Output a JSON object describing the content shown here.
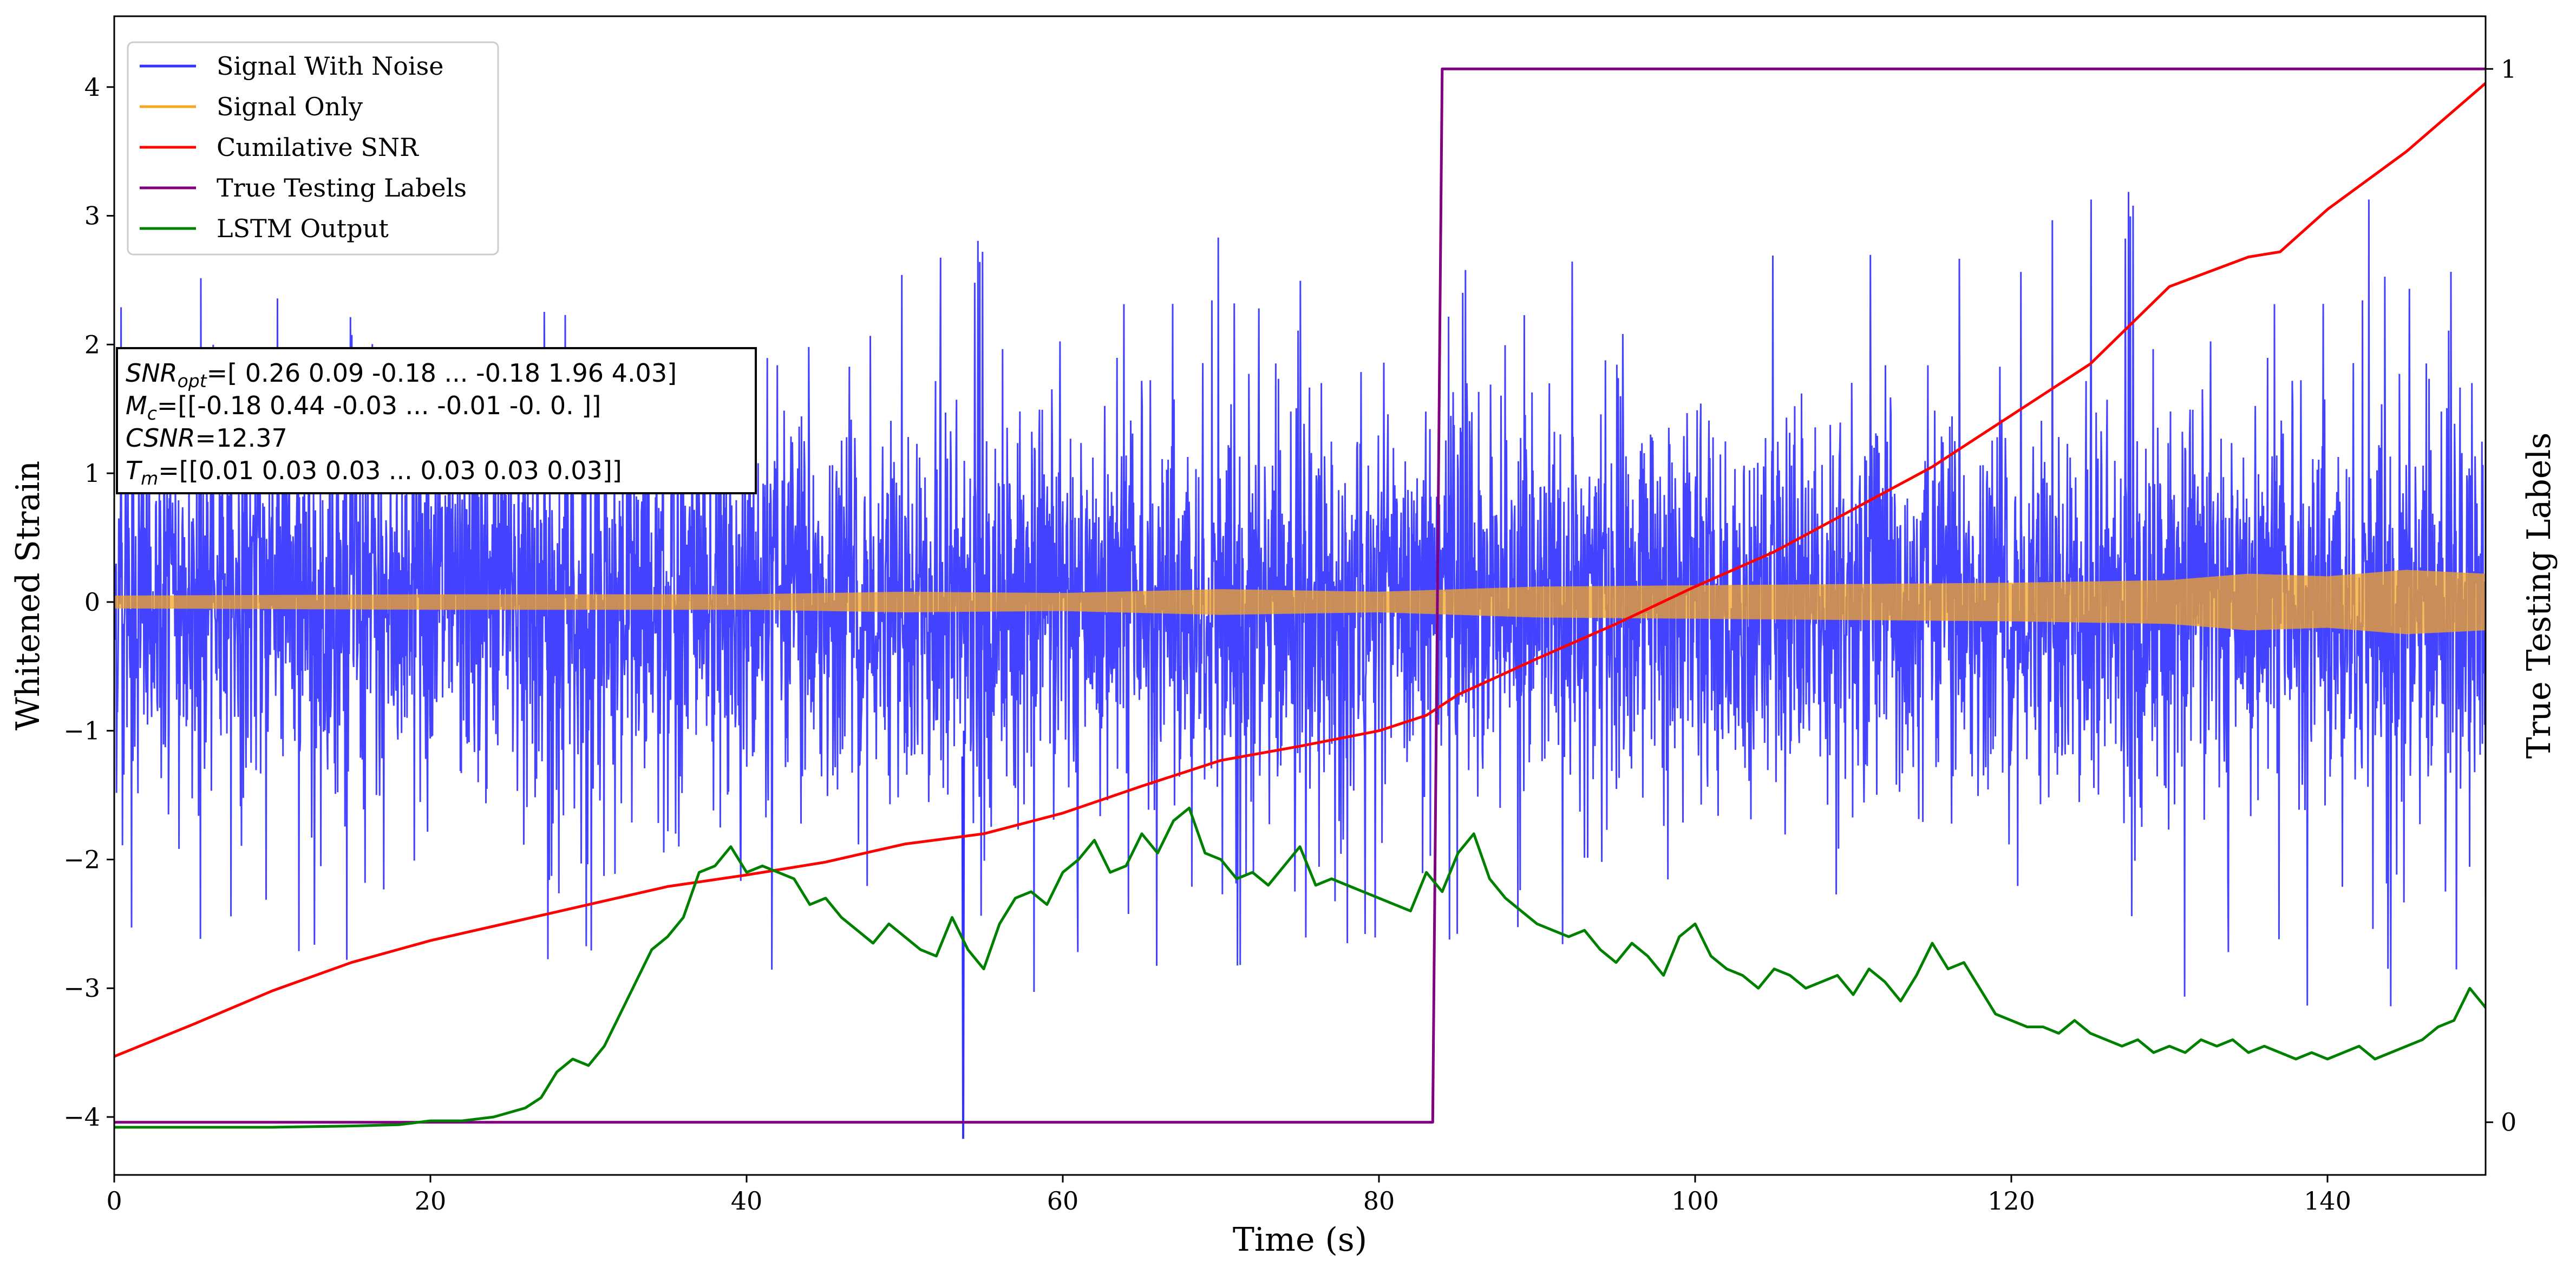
{
  "chart_data": {
    "type": "line",
    "xlabel": "Time (s)",
    "ylabel": "Whitened Strain",
    "y2label": "True Testing Labels",
    "xlim": [
      0,
      150
    ],
    "ylim": [
      -4.45,
      4.55
    ],
    "y2lim": [
      -0.05,
      1.05
    ],
    "x_ticks": [
      0,
      20,
      40,
      60,
      80,
      100,
      120,
      140
    ],
    "y_ticks": [
      -4,
      -3,
      -2,
      -1,
      0,
      1,
      2,
      3,
      4
    ],
    "y2_ticks": [
      0,
      1
    ],
    "legend_placement": "upper-left",
    "series": [
      {
        "name": "Signal With Noise",
        "color": "#3333ff",
        "axis": "left",
        "kind": "noise-band",
        "envelope_x": [
          0,
          20,
          40,
          60,
          80,
          100,
          120,
          140,
          150
        ],
        "envelope_upper": [
          2.8,
          2.4,
          2.0,
          3.1,
          3.0,
          2.9,
          3.0,
          3.5,
          3.0
        ],
        "envelope_lower": [
          -3.0,
          -2.7,
          -2.9,
          -3.1,
          -2.6,
          -2.7,
          -2.9,
          -3.3,
          -2.9
        ],
        "min_spike": {
          "x": 53.7,
          "y": -4.17
        }
      },
      {
        "name": "Signal Only",
        "color": "#f5a623",
        "axis": "left",
        "kind": "oscillation",
        "envelope_x": [
          0,
          20,
          40,
          50,
          60,
          70,
          80,
          90,
          100,
          110,
          120,
          130,
          135,
          140,
          145,
          150
        ],
        "envelope_amp": [
          0.05,
          0.06,
          0.06,
          0.08,
          0.07,
          0.1,
          0.08,
          0.12,
          0.13,
          0.14,
          0.15,
          0.17,
          0.22,
          0.2,
          0.25,
          0.22
        ]
      },
      {
        "name": "Cumilative SNR",
        "color": "#ff0000",
        "axis": "left",
        "x": [
          0,
          5,
          10,
          15,
          20,
          25,
          30,
          35,
          40,
          45,
          50,
          55,
          60,
          65,
          70,
          75,
          80,
          83,
          85,
          90,
          95,
          100,
          105,
          110,
          115,
          120,
          125,
          130,
          135,
          137,
          140,
          145,
          150
        ],
        "values": [
          -3.53,
          -3.28,
          -3.02,
          -2.8,
          -2.63,
          -2.49,
          -2.35,
          -2.21,
          -2.12,
          -2.02,
          -1.88,
          -1.8,
          -1.64,
          -1.43,
          -1.23,
          -1.12,
          -1.0,
          -0.88,
          -0.72,
          -0.44,
          -0.17,
          0.12,
          0.39,
          0.72,
          1.05,
          1.45,
          1.85,
          2.45,
          2.68,
          2.72,
          3.05,
          3.5,
          4.03
        ]
      },
      {
        "name": "True Testing Labels",
        "color": "#800080",
        "axis": "right",
        "x": [
          0,
          83.4,
          84.0,
          150
        ],
        "values": [
          0,
          0,
          1,
          1
        ]
      },
      {
        "name": "LSTM Output",
        "color": "#008000",
        "axis": "left",
        "x": [
          0,
          10,
          15,
          18,
          20,
          22,
          24,
          26,
          27,
          28,
          29,
          30,
          31,
          32,
          33,
          34,
          35,
          36,
          37,
          38,
          39,
          40,
          41,
          42,
          43,
          44,
          45,
          46,
          47,
          48,
          49,
          50,
          51,
          52,
          53,
          54,
          55,
          56,
          57,
          58,
          59,
          60,
          61,
          62,
          63,
          64,
          65,
          66,
          67,
          68,
          69,
          70,
          71,
          72,
          73,
          74,
          75,
          76,
          77,
          78,
          79,
          80,
          81,
          82,
          83,
          84,
          85,
          86,
          87,
          88,
          89,
          90,
          91,
          92,
          93,
          94,
          95,
          96,
          97,
          98,
          99,
          100,
          101,
          102,
          103,
          104,
          105,
          106,
          107,
          108,
          109,
          110,
          111,
          112,
          113,
          114,
          115,
          116,
          117,
          118,
          119,
          120,
          121,
          122,
          123,
          124,
          125,
          126,
          127,
          128,
          129,
          130,
          131,
          132,
          133,
          134,
          135,
          136,
          137,
          138,
          139,
          140,
          141,
          142,
          143,
          144,
          145,
          146,
          147,
          148,
          149,
          150
        ],
        "values": [
          -4.08,
          -4.08,
          -4.07,
          -4.06,
          -4.03,
          -4.03,
          -4.0,
          -3.93,
          -3.85,
          -3.65,
          -3.55,
          -3.6,
          -3.45,
          -3.2,
          -2.95,
          -2.7,
          -2.6,
          -2.45,
          -2.1,
          -2.05,
          -1.9,
          -2.1,
          -2.05,
          -2.1,
          -2.15,
          -2.35,
          -2.3,
          -2.45,
          -2.55,
          -2.65,
          -2.5,
          -2.6,
          -2.7,
          -2.75,
          -2.45,
          -2.7,
          -2.85,
          -2.5,
          -2.3,
          -2.25,
          -2.35,
          -2.1,
          -2.0,
          -1.85,
          -2.1,
          -2.05,
          -1.8,
          -1.95,
          -1.7,
          -1.6,
          -1.95,
          -2.0,
          -2.15,
          -2.1,
          -2.2,
          -2.05,
          -1.9,
          -2.2,
          -2.15,
          -2.2,
          -2.25,
          -2.3,
          -2.35,
          -2.4,
          -2.1,
          -2.25,
          -1.95,
          -1.8,
          -2.15,
          -2.3,
          -2.4,
          -2.5,
          -2.55,
          -2.6,
          -2.55,
          -2.7,
          -2.8,
          -2.65,
          -2.75,
          -2.9,
          -2.6,
          -2.5,
          -2.75,
          -2.85,
          -2.9,
          -3.0,
          -2.85,
          -2.9,
          -3.0,
          -2.95,
          -2.9,
          -3.05,
          -2.85,
          -2.95,
          -3.1,
          -2.9,
          -2.65,
          -2.85,
          -2.8,
          -3.0,
          -3.2,
          -3.25,
          -3.3,
          -3.3,
          -3.35,
          -3.25,
          -3.35,
          -3.4,
          -3.45,
          -3.4,
          -3.5,
          -3.45,
          -3.5,
          -3.4,
          -3.45,
          -3.4,
          -3.5,
          -3.45,
          -3.5,
          -3.55,
          -3.5,
          -3.55,
          -3.5,
          -3.45,
          -3.55,
          -3.5,
          -3.45,
          -3.4,
          -3.3,
          -3.25,
          -3.0,
          -3.15
        ]
      }
    ],
    "annotation_lines": [
      [
        "SNR",
        "opt",
        "=[ 0.26  0.09 -0.18 ... -0.18  1.96  4.03]"
      ],
      [
        "M",
        "c",
        "=[[-0.18  0.44 -0.03 ... -0.01 -0.    0.  ]]"
      ],
      [
        "CSNR",
        "",
        "=12.37"
      ],
      [
        "T",
        "m",
        "=[[0.01 0.03 0.03 ... 0.03 0.03 0.03]]"
      ]
    ]
  }
}
